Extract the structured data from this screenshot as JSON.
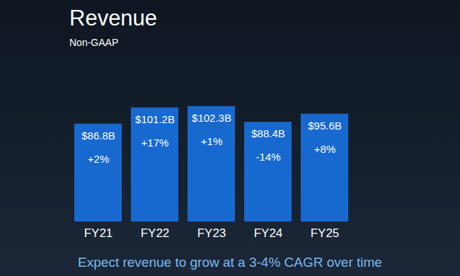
{
  "chart_data": {
    "type": "bar",
    "title": "Revenue",
    "subtitle": "Non-GAAP",
    "categories": [
      "FY21",
      "FY22",
      "FY23",
      "FY24",
      "FY25"
    ],
    "values": [
      86.8,
      101.2,
      102.3,
      88.4,
      95.6
    ],
    "value_labels": [
      "$86.8B",
      "$101.2B",
      "$102.3B",
      "$88.4B",
      "$95.6B"
    ],
    "growth_labels": [
      "+2%",
      "+17%",
      "+1%",
      "-14%",
      "+8%"
    ],
    "color": "#1769d0",
    "ylim": [
      0,
      102.3
    ],
    "yticks": [],
    "tick_labels": "x",
    "data_labels": true,
    "grid": false,
    "caption": "Expect revenue to grow at a 3-4% CAGR over time"
  }
}
